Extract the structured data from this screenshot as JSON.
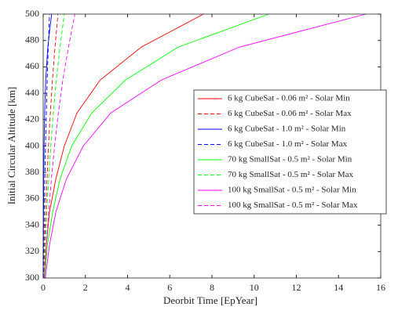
{
  "chart_data": {
    "type": "line",
    "xlabel": "Deorbit Time [EpYear]",
    "ylabel": "Initial Circular Altitude [km]",
    "xlim": [
      0,
      16
    ],
    "xticks": [
      0,
      2,
      4,
      6,
      8,
      10,
      12,
      14,
      16
    ],
    "ylim": [
      300,
      500
    ],
    "yticks": [
      300,
      320,
      340,
      360,
      380,
      400,
      420,
      440,
      460,
      480,
      500
    ],
    "legend": "upper right",
    "series": [
      {
        "name": "6 kg CubeSat - 0.06 m² - Solar Min",
        "color": "#ff0000",
        "dash": false,
        "x": [
          0.05,
          0.15,
          0.3,
          0.6,
          1.0,
          1.6,
          2.7,
          4.65,
          7.6
        ],
        "values": [
          300,
          325,
          350,
          375,
          400,
          425,
          450,
          475,
          500
        ]
      },
      {
        "name": "6 kg CubeSat - 0.06 m² - Solar Max",
        "color": "#ff0000",
        "dash": true,
        "x": [
          0.03,
          0.07,
          0.12,
          0.18,
          0.25,
          0.34,
          0.44,
          0.56,
          0.7
        ],
        "values": [
          300,
          325,
          350,
          375,
          400,
          425,
          450,
          475,
          500
        ]
      },
      {
        "name": "6 kg CubeSat - 1.0 m² - Solar Min",
        "color": "#0000ff",
        "dash": false,
        "x": [
          0.004,
          0.008,
          0.015,
          0.025,
          0.04,
          0.07,
          0.12,
          0.22,
          0.4
        ],
        "values": [
          300,
          325,
          350,
          375,
          400,
          425,
          450,
          475,
          500
        ]
      },
      {
        "name": "6 kg CubeSat - 1.0 m² - Solar Max",
        "color": "#0000ff",
        "dash": true,
        "x": [
          0.012,
          0.03,
          0.05,
          0.08,
          0.11,
          0.15,
          0.19,
          0.24,
          0.3
        ],
        "values": [
          300,
          325,
          350,
          375,
          400,
          425,
          450,
          475,
          500
        ]
      },
      {
        "name": "70 kg SmallSat - 0.5 m² - Solar Min",
        "color": "#00ff00",
        "dash": false,
        "x": [
          0.07,
          0.2,
          0.45,
          0.8,
          1.35,
          2.3,
          3.9,
          6.4,
          10.7
        ],
        "values": [
          300,
          325,
          350,
          375,
          400,
          425,
          450,
          475,
          500
        ]
      },
      {
        "name": "70 kg SmallSat - 0.5 m² - Solar Max",
        "color": "#00ff00",
        "dash": true,
        "x": [
          0.04,
          0.1,
          0.17,
          0.26,
          0.36,
          0.48,
          0.62,
          0.8,
          1.0
        ],
        "values": [
          300,
          325,
          350,
          375,
          400,
          425,
          450,
          475,
          500
        ]
      },
      {
        "name": "100 kg SmallSat - 0.5 m² - Solar Min",
        "color": "#ff00ff",
        "dash": false,
        "x": [
          0.1,
          0.3,
          0.6,
          1.1,
          1.9,
          3.2,
          5.6,
          9.3,
          15.3
        ],
        "values": [
          300,
          325,
          350,
          375,
          400,
          425,
          450,
          475,
          500
        ]
      },
      {
        "name": "100 kg SmallSat - 0.5 m² - Solar Max",
        "color": "#ff00ff",
        "dash": true,
        "x": [
          0.06,
          0.15,
          0.26,
          0.39,
          0.54,
          0.72,
          0.93,
          1.2,
          1.5
        ],
        "values": [
          300,
          325,
          350,
          375,
          400,
          425,
          450,
          475,
          500
        ]
      }
    ]
  }
}
